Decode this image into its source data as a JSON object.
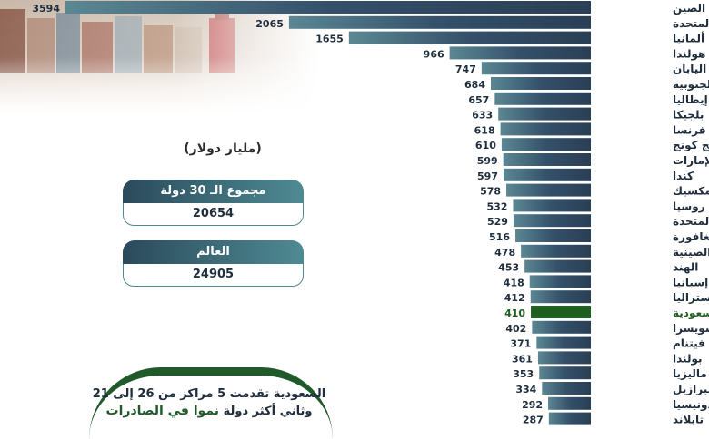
{
  "chart_data": {
    "type": "bar",
    "orientation": "horizontal",
    "unit": "(مليار دولار)",
    "highlight_category": "السعودية",
    "colors": {
      "bar": "#2f4a5e",
      "highlight": "#1f5f1f"
    },
    "categories": [
      "الصين",
      "الولايات المتحدة",
      "ألمانيا",
      "هولندا",
      "اليابان",
      "كوريا الجنوبية",
      "إيطاليا",
      "بلجيكا",
      "فرنسا",
      "هونج كونج",
      "الإمارات",
      "كندا",
      "المكسيك",
      "روسيا",
      "المملكة المتحدة",
      "سنغافورة",
      "تايبيه الصينية",
      "الهند",
      "إسبانيا",
      "أستراليا",
      "السعودية",
      "سويسرا",
      "فيتنام",
      "بولندا",
      "ماليزيا",
      "البرازيل",
      "إندونيسيا",
      "تايلاند"
    ],
    "values": [
      3594,
      2065,
      1655,
      966,
      747,
      684,
      657,
      633,
      618,
      610,
      599,
      597,
      578,
      532,
      529,
      516,
      478,
      453,
      418,
      412,
      410,
      402,
      371,
      361,
      353,
      334,
      292,
      287
    ]
  },
  "summary": {
    "unit_label": "(مليار دولار)",
    "total30_label": "مجموع الـ 30 دولة",
    "total30_value": "20654",
    "world_label": "العالم",
    "world_value": "24905"
  },
  "note": {
    "line1": "السعودية تقدمت 5 مراكز من 26 إلى 21",
    "line2_a": "وثاني أكثر دولة",
    "line2_b": "نموا في الصادرات"
  }
}
